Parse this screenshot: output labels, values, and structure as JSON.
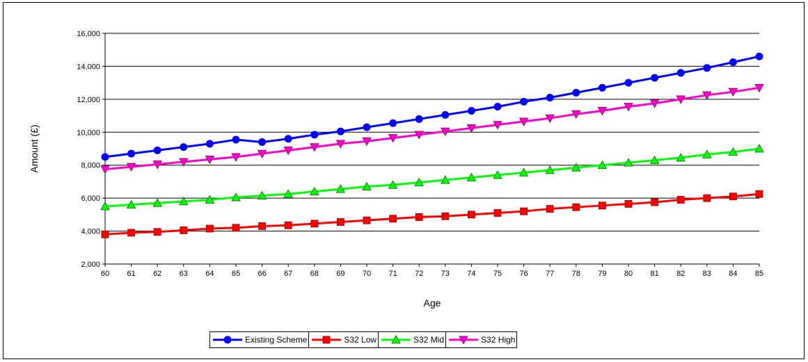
{
  "chart_data": {
    "type": "line",
    "title": "",
    "xlabel": "Age",
    "ylabel": "Amount (£)",
    "ylim": [
      2000,
      16000
    ],
    "yticks": [
      2000,
      4000,
      6000,
      8000,
      10000,
      12000,
      14000,
      16000
    ],
    "ytick_labels": [
      "2,000",
      "4,000",
      "6,000",
      "8,000",
      "10,000",
      "12,000",
      "14,000",
      "16,000"
    ],
    "x": [
      60,
      61,
      62,
      63,
      64,
      65,
      66,
      67,
      68,
      69,
      70,
      71,
      72,
      73,
      74,
      75,
      76,
      77,
      78,
      79,
      80,
      81,
      82,
      83,
      84,
      85
    ],
    "grid": "horizontal",
    "legend_position": "bottom",
    "series": [
      {
        "name": "Existing Scheme",
        "color": "#0000FF",
        "marker": "circle",
        "values": [
          8500,
          8700,
          8900,
          9100,
          9300,
          9550,
          9400,
          9600,
          9850,
          10050,
          10300,
          10550,
          10800,
          11050,
          11300,
          11550,
          11850,
          12100,
          12400,
          12700,
          13000,
          13300,
          13600,
          13900,
          14250,
          14600
        ]
      },
      {
        "name": "S32 Low",
        "color": "#FF0000",
        "marker": "square",
        "values": [
          3800,
          3900,
          3950,
          4050,
          4150,
          4200,
          4300,
          4350,
          4450,
          4550,
          4650,
          4750,
          4850,
          4900,
          5000,
          5100,
          5200,
          5350,
          5450,
          5550,
          5650,
          5750,
          5900,
          6000,
          6100,
          6250
        ]
      },
      {
        "name": "S32 Mid",
        "color": "#00FF00",
        "marker": "triangle-up",
        "values": [
          5500,
          5600,
          5700,
          5800,
          5900,
          6050,
          6150,
          6250,
          6400,
          6550,
          6700,
          6800,
          6950,
          7100,
          7250,
          7400,
          7550,
          7700,
          7850,
          8000,
          8150,
          8300,
          8450,
          8650,
          8800,
          9000
        ]
      },
      {
        "name": "S32 High",
        "color": "#FF00CC",
        "marker": "triangle-down",
        "values": [
          7750,
          7900,
          8050,
          8200,
          8350,
          8500,
          8700,
          8900,
          9100,
          9300,
          9450,
          9650,
          9850,
          10050,
          10250,
          10450,
          10650,
          10850,
          11100,
          11300,
          11550,
          11750,
          12000,
          12250,
          12450,
          12700
        ]
      }
    ]
  }
}
